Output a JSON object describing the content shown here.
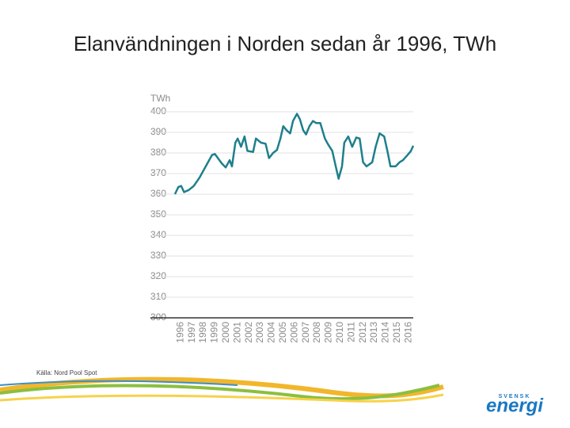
{
  "chart_data": {
    "type": "line",
    "title": "Elanvändningen i Norden sedan år 1996, TWh",
    "y_label": "TWh",
    "source": "Källa: Nord Pool Spot",
    "logo": {
      "top": "SVENSK",
      "main": "energi"
    },
    "color": "#1e7f8c",
    "grid": true,
    "xlim": [
      1996,
      2016.9
    ],
    "ylim": [
      300,
      400
    ],
    "yticks": [
      300,
      310,
      320,
      330,
      340,
      350,
      360,
      370,
      380,
      390,
      400
    ],
    "xticks": [
      {
        "value": 1996.5,
        "label": "1996"
      },
      {
        "value": 1997.5,
        "label": "1997"
      },
      {
        "value": 1998.5,
        "label": "1998"
      },
      {
        "value": 1999.5,
        "label": "1999"
      },
      {
        "value": 2000.5,
        "label": "2000"
      },
      {
        "value": 2001.5,
        "label": "2001"
      },
      {
        "value": 2002.5,
        "label": "2002"
      },
      {
        "value": 2003.5,
        "label": "2003"
      },
      {
        "value": 2004.5,
        "label": "2004"
      },
      {
        "value": 2005.5,
        "label": "2005"
      },
      {
        "value": 2006.5,
        "label": "2006"
      },
      {
        "value": 2007.5,
        "label": "2007"
      },
      {
        "value": 2008.5,
        "label": "2008"
      },
      {
        "value": 2009.5,
        "label": "2009"
      },
      {
        "value": 2010.5,
        "label": "2010"
      },
      {
        "value": 2011.5,
        "label": "2011"
      },
      {
        "value": 2012.5,
        "label": "2012"
      },
      {
        "value": 2013.5,
        "label": "2013"
      },
      {
        "value": 2014.5,
        "label": "2014"
      },
      {
        "value": 2015.5,
        "label": "2015"
      },
      {
        "value": 2016.5,
        "label": "2016"
      }
    ],
    "x": [
      1996.0,
      1996.3,
      1996.55,
      1996.8,
      1997.2,
      1997.65,
      1998.15,
      1998.7,
      1999.25,
      1999.5,
      2000.1,
      2000.45,
      2000.8,
      2001.0,
      2001.3,
      2001.5,
      2001.8,
      2002.1,
      2002.35,
      2002.85,
      2003.1,
      2003.55,
      2003.95,
      2004.25,
      2004.6,
      2004.95,
      2005.25,
      2005.5,
      2005.8,
      2006.1,
      2006.35,
      2006.7,
      2006.95,
      2007.25,
      2007.5,
      2007.8,
      2008.1,
      2008.4,
      2008.75,
      2009.15,
      2009.45,
      2009.8,
      2010.1,
      2010.35,
      2010.65,
      2010.85,
      2011.2,
      2011.55,
      2011.9,
      2012.2,
      2012.5,
      2012.8,
      2013.3,
      2013.6,
      2013.95,
      2014.35,
      2014.65,
      2014.9,
      2015.35,
      2015.7,
      2016.0,
      2016.4,
      2016.7,
      2016.9
    ],
    "values": [
      360,
      363.5,
      364,
      361,
      362,
      364,
      368,
      373.5,
      379,
      379.5,
      375,
      373,
      376.5,
      373.5,
      385,
      387,
      383,
      388,
      381,
      380.5,
      387,
      385,
      384.5,
      377.5,
      380,
      381.5,
      387,
      393,
      391,
      389.5,
      395.5,
      399,
      396.5,
      391,
      389,
      393,
      395.5,
      394.5,
      394.5,
      387,
      384,
      381,
      373.5,
      367.5,
      373.5,
      385,
      388,
      383,
      387.5,
      387,
      375.5,
      373.5,
      375.5,
      383,
      389.5,
      388,
      380.5,
      373.5,
      373.5,
      375.5,
      376.5,
      379,
      381,
      383.5
    ]
  }
}
